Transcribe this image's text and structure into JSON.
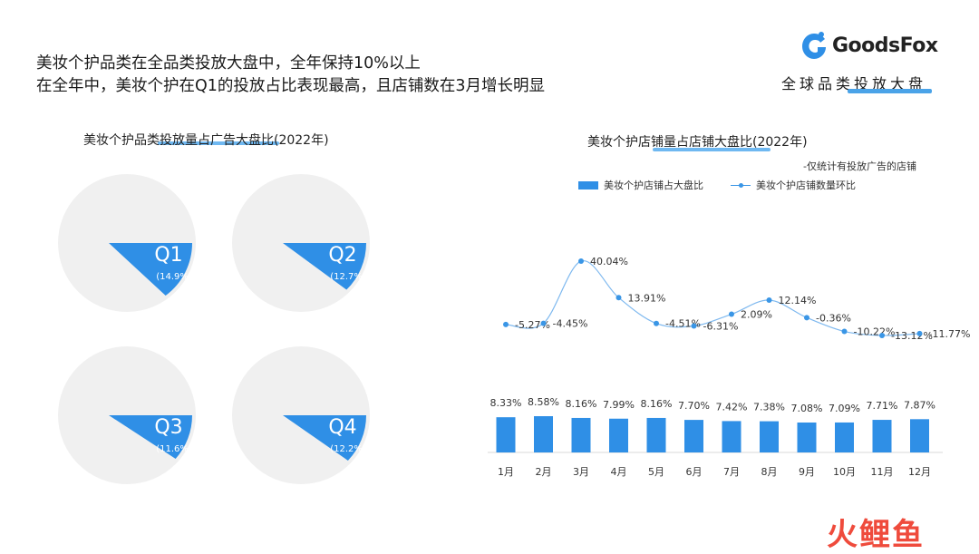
{
  "headline": {
    "line1": "美妆个护品类在全品类投放大盘中，全年保持10%以上",
    "line2": "在全年中，美妆个护在Q1的投放占比表现最高，且店铺数在3月增长明显"
  },
  "logo": {
    "name": "GoodsFox",
    "icon": "goodsfox-logo-icon"
  },
  "section_tag": "全球品类投放大盘",
  "watermark": "火鲤鱼",
  "colors": {
    "accent": "#2f8fe6",
    "pie_bg": "#f0f0f0",
    "line": "#3a96e6"
  },
  "chart_data": [
    {
      "type": "pie",
      "title": "美妆个护品类投放量占广告大盘比(2022年)",
      "slices": [
        {
          "label": "Q1",
          "value": 14.9,
          "value_label": "(14.9%)"
        },
        {
          "label": "Q2",
          "value": 12.7,
          "value_label": "(12.7%)"
        },
        {
          "label": "Q3",
          "value": 11.6,
          "value_label": "(11.6%)"
        },
        {
          "label": "Q4",
          "value": 12.2,
          "value_label": "(12.2%)"
        }
      ]
    },
    {
      "type": "bar+line",
      "title": "美妆个护店铺量占店铺大盘比(2022年)",
      "note": "-仅统计有投放广告的店铺",
      "legend_position": "top",
      "categories": [
        "1月",
        "2月",
        "3月",
        "4月",
        "5月",
        "6月",
        "7月",
        "8月",
        "9月",
        "10月",
        "11月",
        "12月"
      ],
      "series": [
        {
          "name": "美妆个护店铺占大盘比",
          "type": "bar",
          "values": [
            8.33,
            8.58,
            8.16,
            7.99,
            8.16,
            7.7,
            7.42,
            7.38,
            7.08,
            7.09,
            7.71,
            7.87
          ],
          "labels": [
            "8.33%",
            "8.58%",
            "8.16%",
            "7.99%",
            "8.16%",
            "7.70%",
            "7.42%",
            "7.38%",
            "7.08%",
            "7.09%",
            "7.71%",
            "7.87%"
          ]
        },
        {
          "name": "美妆个护店铺数量环比",
          "type": "line",
          "values": [
            -5.27,
            -4.45,
            40.04,
            13.91,
            -4.51,
            -6.31,
            2.09,
            12.14,
            -0.36,
            -10.22,
            -13.12,
            -11.77
          ],
          "labels": [
            "-5.27%",
            "-4.45%",
            "40.04%",
            "13.91%",
            "-4.51%",
            "-6.31%",
            "2.09%",
            "12.14%",
            "-0.36%",
            "-10.22%",
            "-13.12%",
            "-11.77%"
          ]
        }
      ]
    }
  ]
}
